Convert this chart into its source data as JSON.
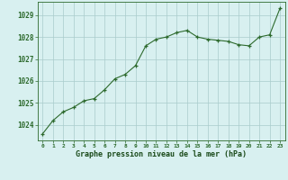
{
  "x": [
    0,
    1,
    2,
    3,
    4,
    5,
    6,
    7,
    8,
    9,
    10,
    11,
    12,
    13,
    14,
    15,
    16,
    17,
    18,
    19,
    20,
    21,
    22,
    23
  ],
  "y": [
    1023.6,
    1024.2,
    1024.6,
    1024.8,
    1025.1,
    1025.2,
    1025.6,
    1026.1,
    1026.3,
    1026.7,
    1027.6,
    1027.9,
    1028.0,
    1028.2,
    1028.3,
    1028.0,
    1027.9,
    1027.85,
    1027.8,
    1027.65,
    1027.6,
    1028.0,
    1028.1,
    1029.3
  ],
  "line_color": "#2d6a2d",
  "marker": "+",
  "bg_color": "#d8f0f0",
  "grid_color": "#aacccc",
  "xlabel": "Graphe pression niveau de la mer (hPa)",
  "xlabel_color": "#1a4a1a",
  "ylabel_ticks": [
    1024,
    1025,
    1026,
    1027,
    1028,
    1029
  ],
  "xlim": [
    -0.5,
    23.5
  ],
  "ylim": [
    1023.3,
    1029.6
  ],
  "tick_color": "#2d6a2d",
  "spine_color": "#2d6a2d"
}
